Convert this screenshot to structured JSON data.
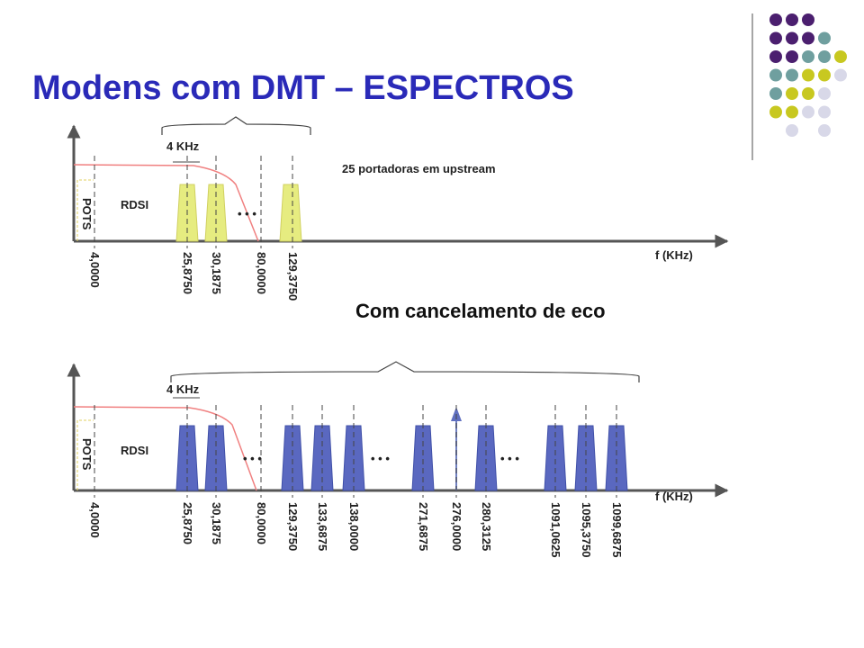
{
  "title": "Modens com DMT – ESPECTROS",
  "upstream": {
    "band_label": "4 KHz",
    "note": "25 portadoras em upstream",
    "rdsi": "RDSI",
    "pots": "POTS",
    "axis_label": "f (KHz)",
    "ticks": [
      "4,0000",
      "25,8750",
      "30,1875",
      "80,0000",
      "129,3750"
    ]
  },
  "caption": "Com cancelamento de eco",
  "echo_cancel": {
    "band_label": "4 KHz",
    "rdsi": "RDSI",
    "pots": "POTS",
    "axis_label": "f (KHz)",
    "ticks": [
      "4,0000",
      "25,8750",
      "30,1875",
      "80,0000",
      "129,3750",
      "133,6875",
      "138,0000",
      "271,6875",
      "276,0000",
      "280,3125",
      "1091,0625",
      "1095,3750",
      "1099,6875"
    ]
  }
}
